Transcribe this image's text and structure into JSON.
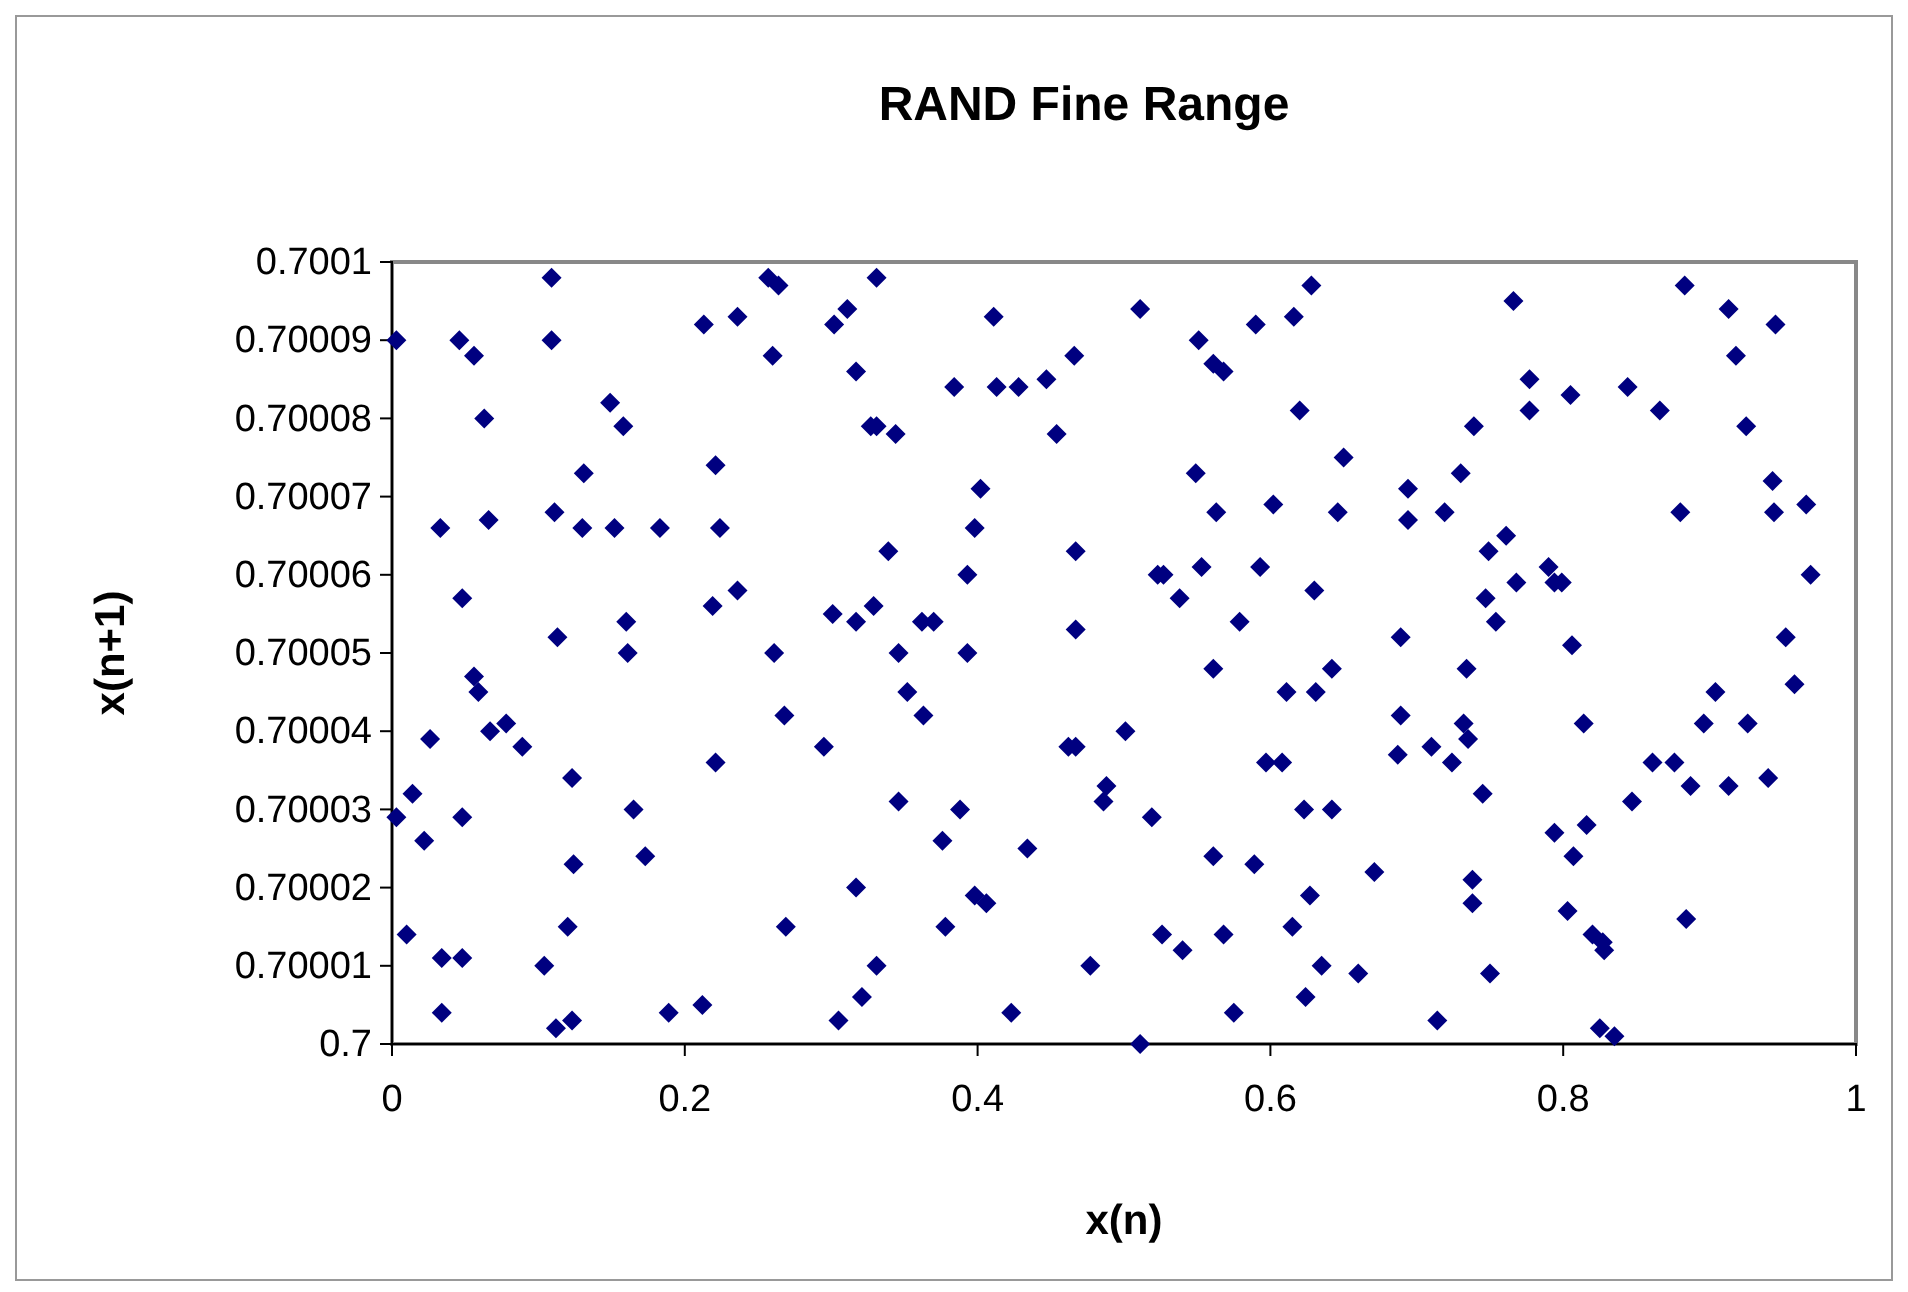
{
  "chart_data": {
    "type": "scatter",
    "title": "RAND Fine Range",
    "xlabel": "x(n)",
    "ylabel": "x(n+1)",
    "xlim": [
      0,
      1
    ],
    "xticks": [
      0,
      0.2,
      0.4,
      0.6,
      0.8,
      1
    ],
    "ylim": [
      0.7,
      0.7001
    ],
    "yticks": [
      0.7,
      0.70001,
      0.70002,
      0.70003,
      0.70004,
      0.70005,
      0.70006,
      0.70007,
      0.70008,
      0.70009,
      0.7001
    ],
    "grid": false,
    "marker": "diamond",
    "series": [
      {
        "color": "#000080",
        "x": [
          0.109,
          0.003,
          0.046,
          0.056,
          0.109,
          0.213,
          0.236,
          0.257,
          0.264,
          0.26,
          0.302,
          0.311,
          0.317,
          0.331,
          0.063,
          0.149,
          0.158,
          0.327,
          0.331,
          0.131,
          0.221,
          0.033,
          0.066,
          0.111,
          0.13,
          0.152,
          0.183,
          0.224,
          0.048,
          0.113,
          0.16,
          0.161,
          0.219,
          0.236,
          0.261,
          0.301,
          0.317,
          0.329,
          0.411,
          0.511,
          0.628,
          0.616,
          0.59,
          0.551,
          0.561,
          0.568,
          0.466,
          0.384,
          0.413,
          0.428,
          0.447,
          0.344,
          0.454,
          0.62,
          0.65,
          0.549,
          0.563,
          0.602,
          0.646,
          0.402,
          0.398,
          0.339,
          0.467,
          0.393,
          0.523,
          0.527,
          0.553,
          0.593,
          0.538,
          0.63,
          0.362,
          0.37,
          0.467,
          0.579,
          0.346,
          0.393,
          0.883,
          0.766,
          0.913,
          0.945,
          0.918,
          0.777,
          0.777,
          0.805,
          0.844,
          0.866,
          0.739,
          0.925,
          0.73,
          0.694,
          0.943,
          0.694,
          0.719,
          0.88,
          0.944,
          0.966,
          0.761,
          0.749,
          0.79,
          0.794,
          0.799,
          0.768,
          0.969,
          0.747,
          0.754,
          0.689,
          0.806,
          0.952,
          0.056,
          0.059,
          0.067,
          0.078,
          0.089,
          0.026,
          0.268,
          0.295,
          0.221,
          0.123,
          0.014,
          0.165,
          0.003,
          0.048,
          0.022,
          0.173,
          0.124,
          0.317,
          0.01,
          0.12,
          0.269,
          0.034,
          0.048,
          0.104,
          0.331,
          0.321,
          0.034,
          0.189,
          0.212,
          0.305,
          0.112,
          0.123,
          0.561,
          0.642,
          0.611,
          0.631,
          0.352,
          0.363,
          0.501,
          0.462,
          0.467,
          0.597,
          0.608,
          0.488,
          0.486,
          0.519,
          0.346,
          0.388,
          0.623,
          0.642,
          0.376,
          0.434,
          0.561,
          0.589,
          0.398,
          0.406,
          0.627,
          0.378,
          0.615,
          0.526,
          0.54,
          0.568,
          0.477,
          0.635,
          0.624,
          0.423,
          0.575,
          0.511,
          0.66,
          0.734,
          0.689,
          0.732,
          0.735,
          0.814,
          0.687,
          0.71,
          0.724,
          0.745,
          0.904,
          0.958,
          0.896,
          0.926,
          0.861,
          0.876,
          0.887,
          0.913,
          0.94,
          0.847,
          0.794,
          0.816,
          0.807,
          0.671,
          0.738,
          0.738,
          0.803,
          0.884,
          0.82,
          0.827,
          0.828,
          0.75,
          0.714,
          0.825,
          0.835
        ],
        "values": [
          0.700098,
          0.70009,
          0.70009,
          0.700088,
          0.70009,
          0.700092,
          0.700093,
          0.700098,
          0.700097,
          0.700088,
          0.700092,
          0.700094,
          0.700086,
          0.700098,
          0.70008,
          0.700082,
          0.700079,
          0.700079,
          0.700079,
          0.700073,
          0.700074,
          0.700066,
          0.700067,
          0.700068,
          0.700066,
          0.700066,
          0.700066,
          0.700066,
          0.700057,
          0.700052,
          0.700054,
          0.70005,
          0.700056,
          0.700058,
          0.70005,
          0.700055,
          0.700054,
          0.700056,
          0.700093,
          0.700094,
          0.700097,
          0.700093,
          0.700092,
          0.70009,
          0.700087,
          0.700086,
          0.700088,
          0.700084,
          0.700084,
          0.700084,
          0.700085,
          0.700078,
          0.700078,
          0.700081,
          0.700075,
          0.700073,
          0.700068,
          0.700069,
          0.700068,
          0.700071,
          0.700066,
          0.700063,
          0.700063,
          0.70006,
          0.70006,
          0.70006,
          0.700061,
          0.700061,
          0.700057,
          0.700058,
          0.700054,
          0.700054,
          0.700053,
          0.700054,
          0.70005,
          0.70005,
          0.700097,
          0.700095,
          0.700094,
          0.700092,
          0.700088,
          0.700085,
          0.700081,
          0.700083,
          0.700084,
          0.700081,
          0.700079,
          0.700079,
          0.700073,
          0.700071,
          0.700072,
          0.700067,
          0.700068,
          0.700068,
          0.700068,
          0.700069,
          0.700065,
          0.700063,
          0.700061,
          0.700059,
          0.700059,
          0.700059,
          0.70006,
          0.700057,
          0.700054,
          0.700052,
          0.700051,
          0.700052,
          0.700047,
          0.700045,
          0.70004,
          0.700041,
          0.700038,
          0.700039,
          0.700042,
          0.700038,
          0.700036,
          0.700034,
          0.700032,
          0.70003,
          0.700029,
          0.700029,
          0.700026,
          0.700024,
          0.700023,
          0.70002,
          0.700014,
          0.700015,
          0.700015,
          0.700011,
          0.700011,
          0.70001,
          0.70001,
          0.700006,
          0.700004,
          0.700004,
          0.700005,
          0.700003,
          0.700002,
          0.700003,
          0.700048,
          0.700048,
          0.700045,
          0.700045,
          0.700045,
          0.700042,
          0.70004,
          0.700038,
          0.700038,
          0.700036,
          0.700036,
          0.700033,
          0.700031,
          0.700029,
          0.700031,
          0.70003,
          0.70003,
          0.70003,
          0.700026,
          0.700025,
          0.700024,
          0.700023,
          0.700019,
          0.700018,
          0.700019,
          0.700015,
          0.700015,
          0.700014,
          0.700012,
          0.700014,
          0.70001,
          0.70001,
          0.700006,
          0.700004,
          0.700004,
          0.7,
          0.700009,
          0.700048,
          0.700042,
          0.700041,
          0.700039,
          0.700041,
          0.700037,
          0.700038,
          0.700036,
          0.700032,
          0.700045,
          0.700046,
          0.700041,
          0.700041,
          0.700036,
          0.700036,
          0.700033,
          0.700033,
          0.700034,
          0.700031,
          0.700027,
          0.700028,
          0.700024,
          0.700022,
          0.700021,
          0.700018,
          0.700017,
          0.700016,
          0.700014,
          0.700013,
          0.700012,
          0.700009,
          0.700003,
          0.700002,
          0.700001
        ]
      }
    ]
  }
}
